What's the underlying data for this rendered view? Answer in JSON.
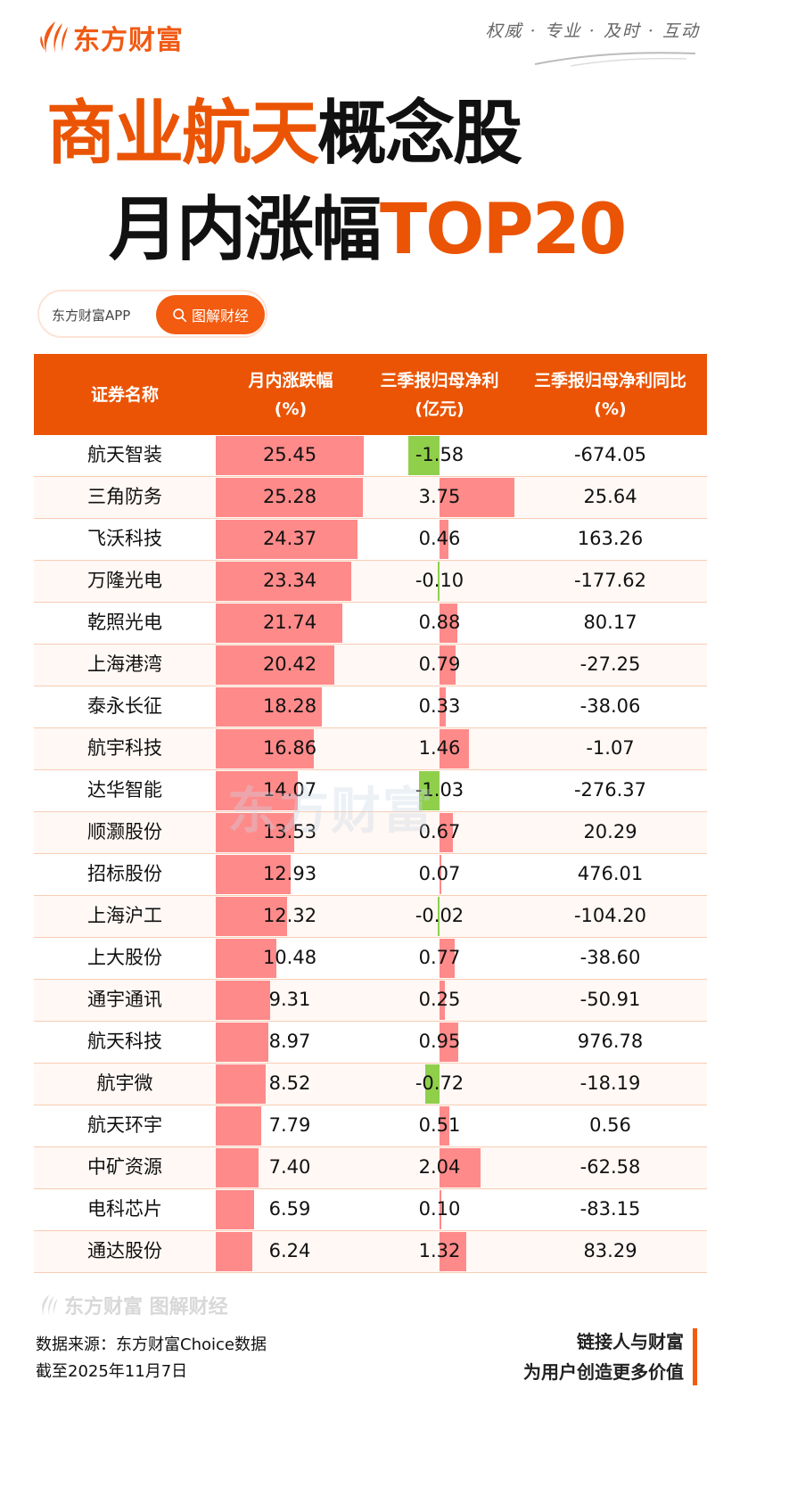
{
  "brand": {
    "logo_text": "东方财富",
    "slogan": "权威 · 专业 · 及时 · 互动",
    "accent_color": "#ea5404"
  },
  "title": {
    "line1_orange": "商业航天",
    "line1_black": "概念股",
    "line2_black": "月内涨幅",
    "line2_orange": "TOP20"
  },
  "pill": {
    "left_label": "东方财富APP",
    "button_label": "图解财经",
    "button_icon": "search-icon"
  },
  "table": {
    "headers": {
      "name": "证券名称",
      "chg_line1": "月内涨跌幅",
      "chg_line2": "(%)",
      "profit_line1": "三季报归母净利",
      "profit_line2": "(亿元)",
      "yoy_line1": "三季报归母净利同比",
      "yoy_line2": "(%)"
    },
    "rows": [
      {
        "name": "航天智装",
        "chg": "25.45",
        "profit": "-1.58",
        "yoy": "-674.05"
      },
      {
        "name": "三角防务",
        "chg": "25.28",
        "profit": "3.75",
        "yoy": "25.64"
      },
      {
        "name": "飞沃科技",
        "chg": "24.37",
        "profit": "0.46",
        "yoy": "163.26"
      },
      {
        "name": "万隆光电",
        "chg": "23.34",
        "profit": "-0.10",
        "yoy": "-177.62"
      },
      {
        "name": "乾照光电",
        "chg": "21.74",
        "profit": "0.88",
        "yoy": "80.17"
      },
      {
        "name": "上海港湾",
        "chg": "20.42",
        "profit": "0.79",
        "yoy": "-27.25"
      },
      {
        "name": "泰永长征",
        "chg": "18.28",
        "profit": "0.33",
        "yoy": "-38.06"
      },
      {
        "name": "航宇科技",
        "chg": "16.86",
        "profit": "1.46",
        "yoy": "-1.07"
      },
      {
        "name": "达华智能",
        "chg": "14.07",
        "profit": "-1.03",
        "yoy": "-276.37"
      },
      {
        "name": "顺灏股份",
        "chg": "13.53",
        "profit": "0.67",
        "yoy": "20.29"
      },
      {
        "name": "招标股份",
        "chg": "12.93",
        "profit": "0.07",
        "yoy": "476.01"
      },
      {
        "name": "上海沪工",
        "chg": "12.32",
        "profit": "-0.02",
        "yoy": "-104.20"
      },
      {
        "name": "上大股份",
        "chg": "10.48",
        "profit": "0.77",
        "yoy": "-38.60"
      },
      {
        "name": "通宇通讯",
        "chg": "9.31",
        "profit": "0.25",
        "yoy": "-50.91"
      },
      {
        "name": "航天科技",
        "chg": "8.97",
        "profit": "0.95",
        "yoy": "976.78"
      },
      {
        "name": "航宇微",
        "chg": "8.52",
        "profit": "-0.72",
        "yoy": "-18.19"
      },
      {
        "name": "航天环宇",
        "chg": "7.79",
        "profit": "0.51",
        "yoy": "0.56"
      },
      {
        "name": "中矿资源",
        "chg": "7.40",
        "profit": "2.04",
        "yoy": "-62.58"
      },
      {
        "name": "电科芯片",
        "chg": "6.59",
        "profit": "0.10",
        "yoy": "-83.15"
      },
      {
        "name": "通达股份",
        "chg": "6.24",
        "profit": "1.32",
        "yoy": "83.29"
      }
    ],
    "colors": {
      "header_bg": "#ea5404",
      "positive_bar": "#ff8a8a",
      "negative_bar": "#8fcf4a",
      "row_divider": "#f7cdb3",
      "alt_row_bg": "#fff8f5"
    }
  },
  "watermark": "东方财富",
  "footer": {
    "logo_text": "东方财富 图解财经",
    "source": "数据来源：东方财富Choice数据",
    "date": "截至2025年11月7日",
    "tagline1": "链接人与财富",
    "tagline2": "为用户创造更多价值"
  },
  "chart_data": {
    "type": "table",
    "title": "商业航天概念股月内涨幅TOP20",
    "columns": [
      "证券名称",
      "月内涨跌幅(%)",
      "三季报归母净利(亿元)",
      "三季报归母净利同比(%)"
    ],
    "categories": [
      "航天智装",
      "三角防务",
      "飞沃科技",
      "万隆光电",
      "乾照光电",
      "上海港湾",
      "泰永长征",
      "航宇科技",
      "达华智能",
      "顺灏股份",
      "招标股份",
      "上海沪工",
      "上大股份",
      "通宇通讯",
      "航天科技",
      "航宇微",
      "航天环宇",
      "中矿资源",
      "电科芯片",
      "通达股份"
    ],
    "series": [
      {
        "name": "月内涨跌幅(%)",
        "values": [
          25.45,
          25.28,
          24.37,
          23.34,
          21.74,
          20.42,
          18.28,
          16.86,
          14.07,
          13.53,
          12.93,
          12.32,
          10.48,
          9.31,
          8.97,
          8.52,
          7.79,
          7.4,
          6.59,
          6.24
        ]
      },
      {
        "name": "三季报归母净利(亿元)",
        "values": [
          -1.58,
          3.75,
          0.46,
          -0.1,
          0.88,
          0.79,
          0.33,
          1.46,
          -1.03,
          0.67,
          0.07,
          -0.02,
          0.77,
          0.25,
          0.95,
          -0.72,
          0.51,
          2.04,
          0.1,
          1.32
        ]
      },
      {
        "name": "三季报归母净利同比(%)",
        "values": [
          -674.05,
          25.64,
          163.26,
          -177.62,
          80.17,
          -27.25,
          -38.06,
          -1.07,
          -276.37,
          20.29,
          476.01,
          -104.2,
          -38.6,
          -50.91,
          976.78,
          -18.19,
          0.56,
          -62.58,
          -83.15,
          83.29
        ]
      }
    ],
    "source": "东方财富Choice数据",
    "as_of": "截至2025年11月7日"
  }
}
